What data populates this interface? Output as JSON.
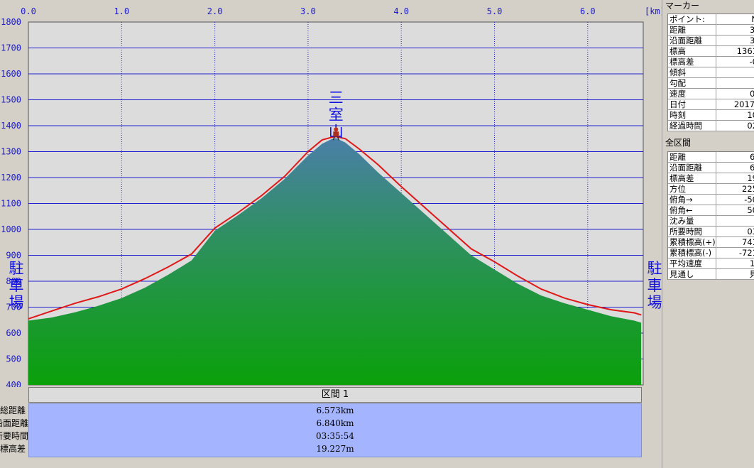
{
  "chart_data": {
    "type": "area",
    "xlim": [
      0,
      6.573
    ],
    "ylim": [
      400,
      1800
    ],
    "x_ticks": [
      "0.0",
      "1.0",
      "2.0",
      "3.0",
      "4.0",
      "5.0",
      "6.0"
    ],
    "x_tick_values": [
      0,
      1,
      2,
      3,
      4,
      5,
      6
    ],
    "x_unit": "[km]",
    "y_ticks": [
      "400",
      "500",
      "600",
      "700",
      "800",
      "900",
      "1000",
      "1100",
      "1200",
      "1300",
      "1400",
      "1500",
      "1600",
      "1700",
      "1800"
    ],
    "y_tick_values": [
      400,
      500,
      600,
      700,
      800,
      900,
      1000,
      1100,
      1200,
      1300,
      1400,
      1500,
      1600,
      1700,
      1800
    ],
    "grid": true,
    "series": [
      {
        "kind": "terrain",
        "color": "#1f9a3a",
        "x": [
          0,
          0.25,
          0.5,
          0.75,
          1.0,
          1.25,
          1.5,
          1.75,
          2.0,
          2.25,
          2.5,
          2.75,
          3.0,
          3.15,
          3.25,
          3.3,
          3.4,
          3.55,
          3.75,
          4.0,
          4.25,
          4.5,
          4.75,
          5.0,
          5.25,
          5.5,
          5.75,
          6.0,
          6.25,
          6.5,
          6.573
        ],
        "y": [
          648,
          660,
          680,
          705,
          735,
          775,
          825,
          880,
          995,
          1055,
          1120,
          1195,
          1285,
          1330,
          1348,
          1352,
          1335,
          1290,
          1220,
          1140,
          1060,
          980,
          900,
          845,
          790,
          745,
          715,
          690,
          665,
          648,
          640
        ]
      },
      {
        "kind": "track",
        "color": "#e01818",
        "x": [
          0,
          0.25,
          0.5,
          0.75,
          1.0,
          1.25,
          1.5,
          1.75,
          2.0,
          2.25,
          2.5,
          2.75,
          3.0,
          3.15,
          3.25,
          3.3,
          3.4,
          3.55,
          3.75,
          4.0,
          4.25,
          4.5,
          4.75,
          5.0,
          5.25,
          5.5,
          5.75,
          6.0,
          6.25,
          6.5,
          6.573
        ],
        "y": [
          655,
          685,
          715,
          740,
          770,
          810,
          855,
          905,
          1005,
          1065,
          1130,
          1205,
          1300,
          1345,
          1355,
          1358,
          1350,
          1310,
          1250,
          1165,
          1085,
          1005,
          925,
          875,
          820,
          770,
          735,
          710,
          690,
          678,
          670
        ]
      }
    ],
    "annotations": [
      {
        "text": "三室山",
        "x": 3.3,
        "y": 1380
      },
      {
        "text": "駐車場",
        "x": 0,
        "y": 720
      },
      {
        "text": "駐車場",
        "x": 6.573,
        "y": 720
      }
    ],
    "marker": {
      "x": 3.3,
      "y": 1361
    }
  },
  "section": {
    "header": "区間 1",
    "rows": [
      {
        "label": "総距離",
        "value": "6.573km"
      },
      {
        "label": "沿面距離",
        "value": "6.840km"
      },
      {
        "label": "所要時間",
        "value": "03:35:54"
      },
      {
        "label": "標高差",
        "value": "19.227m"
      }
    ]
  },
  "panel": {
    "marker_title": "マーカー",
    "marker_rows": [
      {
        "k": "ポイント:",
        "v": "N"
      },
      {
        "k": "距離",
        "v": "3."
      },
      {
        "k": "沿面距離",
        "v": "3."
      },
      {
        "k": "標高",
        "v": "1361"
      },
      {
        "k": "標高差",
        "v": "-0"
      },
      {
        "k": "傾斜",
        "v": "-"
      },
      {
        "k": "勾配",
        "v": "-"
      },
      {
        "k": "速度",
        "v": "0."
      },
      {
        "k": "日付",
        "v": "2017/"
      },
      {
        "k": "時刻",
        "v": "10"
      },
      {
        "k": "経過時間",
        "v": "02"
      }
    ],
    "all_title": "全区間",
    "all_rows": [
      {
        "k": "距離",
        "v": "6."
      },
      {
        "k": "沿面距離",
        "v": "6."
      },
      {
        "k": "標高差",
        "v": "19"
      },
      {
        "k": "方位",
        "v": "225"
      },
      {
        "k": "俯角→",
        "v": "-50"
      },
      {
        "k": "俯角←",
        "v": "50"
      },
      {
        "k": "沈み量",
        "v": ""
      },
      {
        "k": "所要時間",
        "v": "03"
      },
      {
        "k": "累積標高(+)",
        "v": "741"
      },
      {
        "k": "累積標高(-)",
        "v": "-721"
      },
      {
        "k": "平均速度",
        "v": "1."
      },
      {
        "k": "見通し",
        "v": "見"
      }
    ]
  }
}
